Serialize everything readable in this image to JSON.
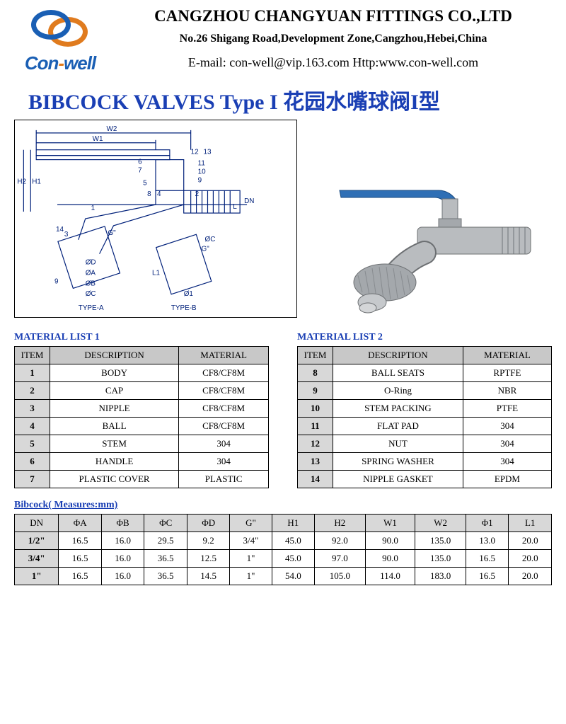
{
  "header": {
    "logo_brand_a": "Con",
    "logo_brand_dash": "-",
    "logo_brand_b": "well",
    "company": "CANGZHOU CHANGYUAN FITTINGS CO.,LTD",
    "address": "No.26 Shigang Road,Development Zone,Cangzhou,Hebei,China",
    "contact": "E-mail: con-well@vip.163.com  Http:www.con-well.com"
  },
  "title": {
    "en": "BIBCOCK VALVES Type I",
    "cn": "花园水嘴球阀I型"
  },
  "material1": {
    "heading": "MATERIAL  LIST 1",
    "columns": [
      "ITEM",
      "DESCRIPTION",
      "MATERIAL"
    ],
    "rows": [
      [
        "1",
        "BODY",
        "CF8/CF8M"
      ],
      [
        "2",
        "CAP",
        "CF8/CF8M"
      ],
      [
        "3",
        "NIPPLE",
        "CF8/CF8M"
      ],
      [
        "4",
        "BALL",
        "CF8/CF8M"
      ],
      [
        "5",
        "STEM",
        "304"
      ],
      [
        "6",
        "HANDLE",
        "304"
      ],
      [
        "7",
        "PLASTIC COVER",
        "PLASTIC"
      ]
    ]
  },
  "material2": {
    "heading": "MATERIAL  LIST 2",
    "columns": [
      "ITEM",
      "DESCRIPTION",
      "MATERIAL"
    ],
    "rows": [
      [
        "8",
        "BALL SEATS",
        "RPTFE"
      ],
      [
        "9",
        "O-Ring",
        "NBR"
      ],
      [
        "10",
        "STEM PACKING",
        "PTFE"
      ],
      [
        "11",
        "FLAT PAD",
        "304"
      ],
      [
        "12",
        "NUT",
        "304"
      ],
      [
        "13",
        "SPRING WASHER",
        "304"
      ],
      [
        "14",
        "NIPPLE GASKET",
        "EPDM"
      ]
    ]
  },
  "measures": {
    "heading": "Bibcock( Measures:mm)",
    "columns": [
      "DN",
      "ΦA",
      "ΦB",
      "ΦC",
      "ΦD",
      "G\"",
      "H1",
      "H2",
      "W1",
      "W2",
      "Φ1",
      "L1"
    ],
    "rows": [
      [
        "1/2\"",
        "16.5",
        "16.0",
        "29.5",
        "9.2",
        "3/4\"",
        "45.0",
        "92.0",
        "90.0",
        "135.0",
        "13.0",
        "20.0"
      ],
      [
        "3/4\"",
        "16.5",
        "16.0",
        "36.5",
        "12.5",
        "1\"",
        "45.0",
        "97.0",
        "90.0",
        "135.0",
        "16.5",
        "20.0"
      ],
      [
        "1\"",
        "16.5",
        "16.0",
        "36.5",
        "14.5",
        "1\"",
        "54.0",
        "105.0",
        "114.0",
        "183.0",
        "16.5",
        "20.0"
      ]
    ]
  },
  "diagram_labels": {
    "W2": "W2",
    "W1": "W1",
    "H1": "H1",
    "H2": "H2",
    "G": "G\"",
    "DN": "DN",
    "L": "L",
    "L1": "L1",
    "p1": "1",
    "p2": "2",
    "p3": "3",
    "p4": "4",
    "p5": "5",
    "p6": "6",
    "p7": "7",
    "p8": "8",
    "p9": "9",
    "p10": "10",
    "p11": "11",
    "p12": "12",
    "p13": "13",
    "p14": "14",
    "phiA": "ØA",
    "phiB": "ØB",
    "phiC": "ØC",
    "phiC2": "ØC",
    "phiD": "ØD",
    "phi1": "Ø1",
    "typeA": "TYPE-A",
    "typeB": "TYPE-B"
  },
  "colors": {
    "title_blue": "#1a3fb4",
    "logo_blue": "#1a5fb4",
    "logo_orange": "#e07b1e",
    "handle_blue": "#2f6fb5",
    "metal": "#b9bcbf",
    "metal_dark": "#888c90",
    "th_bg": "#c8c8c8",
    "idx_bg": "#d8d8d8"
  }
}
